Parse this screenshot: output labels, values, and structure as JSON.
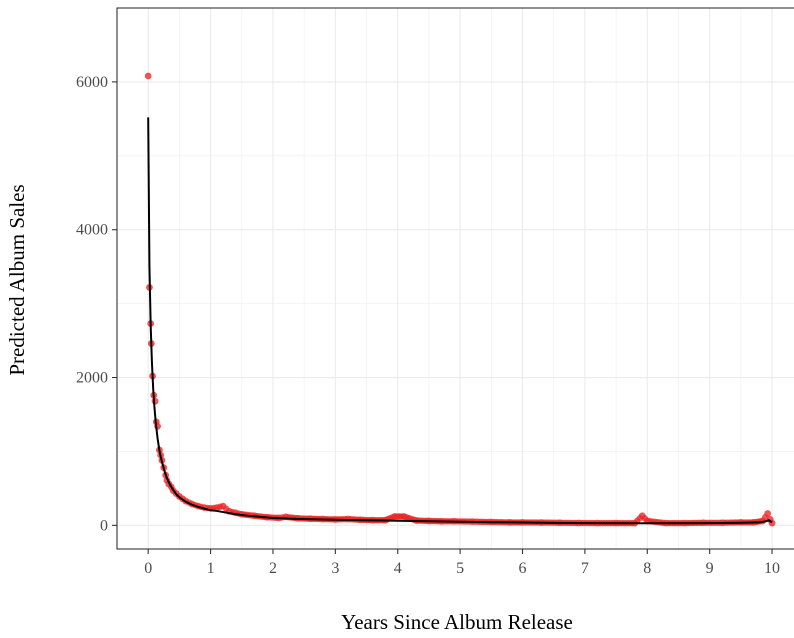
{
  "chart_data": {
    "type": "scatter",
    "title": "",
    "xlabel": "Years Since Album Release",
    "ylabel": "Predicted Album Sales",
    "xlim": [
      -0.5,
      10.4
    ],
    "ylim": [
      -320,
      7000
    ],
    "x_ticks": [
      0,
      1,
      2,
      3,
      4,
      5,
      6,
      7,
      8,
      9,
      10
    ],
    "x_tick_labels": [
      "0",
      "1",
      "2",
      "3",
      "4",
      "5",
      "6",
      "7",
      "8",
      "9",
      "10"
    ],
    "y_ticks": [
      0,
      2000,
      4000,
      6000
    ],
    "y_tick_labels": [
      "0",
      "2000",
      "4000",
      "6000"
    ],
    "grid": true,
    "legend": "none",
    "series": [
      {
        "kind": "points",
        "color": "#ee2222",
        "points": [
          [
            0.0,
            6080
          ],
          [
            0.02,
            3220
          ],
          [
            0.04,
            2730
          ],
          [
            0.05,
            2460
          ],
          [
            0.07,
            2020
          ],
          [
            0.09,
            1760
          ],
          [
            0.11,
            1680
          ],
          [
            0.13,
            1400
          ],
          [
            0.15,
            1340
          ],
          [
            0.18,
            1020
          ],
          [
            0.2,
            950
          ],
          [
            0.22,
            880
          ],
          [
            0.25,
            780
          ],
          [
            0.28,
            680
          ],
          [
            0.3,
            610
          ],
          [
            0.33,
            560
          ],
          [
            0.37,
            520
          ],
          [
            0.4,
            470
          ],
          [
            0.45,
            430
          ],
          [
            0.5,
            390
          ],
          [
            0.55,
            360
          ],
          [
            0.6,
            330
          ],
          [
            0.7,
            290
          ],
          [
            0.8,
            260
          ],
          [
            0.9,
            240
          ],
          [
            1.0,
            230
          ],
          [
            1.1,
            240
          ],
          [
            1.2,
            260
          ],
          [
            1.3,
            190
          ],
          [
            1.4,
            170
          ],
          [
            1.5,
            150
          ],
          [
            1.7,
            130
          ],
          [
            1.9,
            110
          ],
          [
            2.1,
            100
          ],
          [
            2.2,
            115
          ],
          [
            2.4,
            95
          ],
          [
            2.6,
            90
          ],
          [
            2.8,
            85
          ],
          [
            3.0,
            80
          ],
          [
            3.2,
            85
          ],
          [
            3.4,
            75
          ],
          [
            3.6,
            70
          ],
          [
            3.8,
            70
          ],
          [
            3.95,
            120
          ],
          [
            4.1,
            120
          ],
          [
            4.3,
            65
          ],
          [
            4.5,
            60
          ],
          [
            4.7,
            55
          ],
          [
            4.9,
            55
          ],
          [
            5.2,
            50
          ],
          [
            5.5,
            45
          ],
          [
            5.8,
            40
          ],
          [
            6.0,
            40
          ],
          [
            6.3,
            38
          ],
          [
            6.6,
            35
          ],
          [
            6.9,
            32
          ],
          [
            7.2,
            30
          ],
          [
            7.5,
            30
          ],
          [
            7.8,
            30
          ],
          [
            7.92,
            130
          ],
          [
            8.0,
            60
          ],
          [
            8.3,
            30
          ],
          [
            8.6,
            30
          ],
          [
            8.9,
            35
          ],
          [
            9.2,
            35
          ],
          [
            9.5,
            40
          ],
          [
            9.7,
            40
          ],
          [
            9.85,
            60
          ],
          [
            9.93,
            160
          ],
          [
            9.97,
            80
          ],
          [
            10.0,
            30
          ]
        ]
      },
      {
        "kind": "curve",
        "color": "#000000",
        "points": [
          [
            0.0,
            5520
          ],
          [
            0.02,
            3500
          ],
          [
            0.04,
            2700
          ],
          [
            0.06,
            2200
          ],
          [
            0.08,
            1850
          ],
          [
            0.1,
            1600
          ],
          [
            0.12,
            1400
          ],
          [
            0.15,
            1180
          ],
          [
            0.18,
            1010
          ],
          [
            0.22,
            860
          ],
          [
            0.26,
            740
          ],
          [
            0.3,
            640
          ],
          [
            0.35,
            550
          ],
          [
            0.4,
            480
          ],
          [
            0.45,
            420
          ],
          [
            0.5,
            380
          ],
          [
            0.6,
            320
          ],
          [
            0.7,
            280
          ],
          [
            0.8,
            250
          ],
          [
            0.9,
            225
          ],
          [
            1.0,
            205
          ],
          [
            1.1,
            195
          ],
          [
            1.2,
            180
          ],
          [
            1.4,
            150
          ],
          [
            1.6,
            130
          ],
          [
            1.8,
            115
          ],
          [
            2.0,
            100
          ],
          [
            2.3,
            90
          ],
          [
            2.6,
            82
          ],
          [
            3.0,
            75
          ],
          [
            3.5,
            68
          ],
          [
            4.0,
            62
          ],
          [
            4.5,
            55
          ],
          [
            5.0,
            48
          ],
          [
            5.5,
            42
          ],
          [
            6.0,
            38
          ],
          [
            6.5,
            34
          ],
          [
            7.0,
            30
          ],
          [
            7.5,
            28
          ],
          [
            8.0,
            28
          ],
          [
            8.5,
            28
          ],
          [
            9.0,
            30
          ],
          [
            9.5,
            35
          ],
          [
            9.8,
            40
          ],
          [
            9.9,
            55
          ],
          [
            9.95,
            70
          ],
          [
            10.0,
            40
          ]
        ]
      }
    ]
  }
}
